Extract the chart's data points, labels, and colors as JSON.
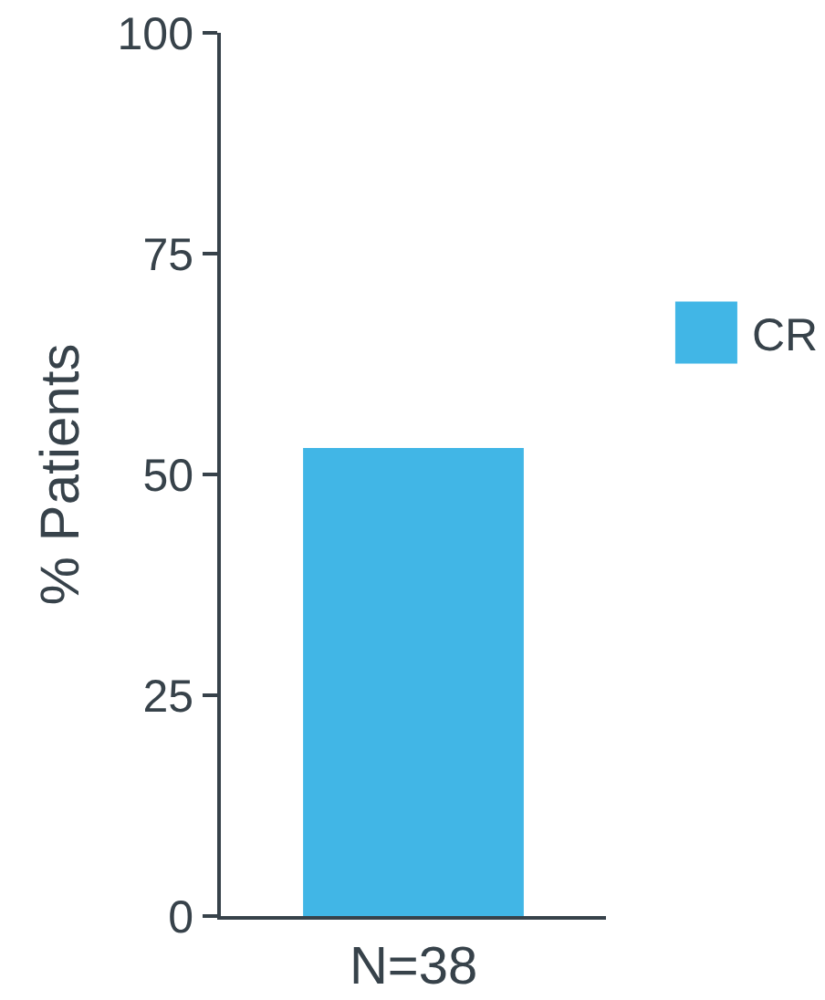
{
  "chart_data": {
    "type": "bar",
    "categories": [
      "N=38"
    ],
    "series": [
      {
        "name": "CR",
        "color": "#41b6e6",
        "values": [
          53
        ]
      }
    ],
    "ylabel": "% Patients",
    "ylim": [
      0,
      100
    ],
    "yticks": [
      0,
      25,
      50,
      75,
      100
    ],
    "legend": "right"
  }
}
